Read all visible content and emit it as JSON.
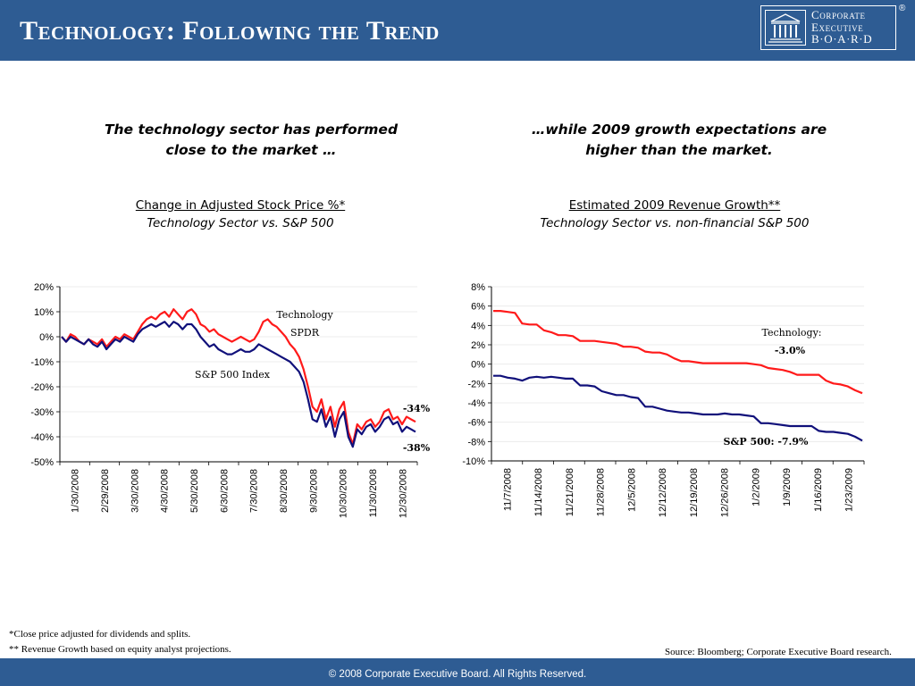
{
  "header": {
    "title": "Technology: Following the Trend",
    "logo_lines": [
      "Corporate",
      "Executive",
      "B·O·A·R·D"
    ],
    "registered": "®"
  },
  "left": {
    "headline_l1": "The technology sector has performed",
    "headline_l2": "close to the market …",
    "subtitle": "Change in Adjusted Stock Price %*",
    "subtitle2": "Technology Sector vs. S&P 500"
  },
  "right": {
    "headline_l1": "…while 2009 growth expectations are",
    "headline_l2": "higher than the market.",
    "subtitle": "Estimated 2009 Revenue Growth**",
    "subtitle2": "Technology Sector  vs. non-financial S&P 500"
  },
  "footnotes": {
    "note1": "*Close price adjusted for dividends and splits.",
    "note2": "** Revenue Growth based on equity analyst projections.",
    "source": "Source: Bloomberg; Corporate Executive Board research."
  },
  "footer": {
    "copyright": "© 2008 Corporate Executive Board. All Rights Reserved."
  },
  "colors": {
    "brand": "#2e5c93",
    "technology": "#ff1a1a",
    "sp500": "#10107a"
  },
  "chart_data": [
    {
      "type": "line",
      "ylim": [
        -0.5,
        0.2
      ],
      "ytick_labels": [
        "20%",
        "10%",
        "0%",
        "-10%",
        "-20%",
        "-30%",
        "-40%",
        "-50%"
      ],
      "yticks": [
        0.2,
        0.1,
        0.0,
        -0.1,
        -0.2,
        -0.3,
        -0.4,
        -0.5
      ],
      "xtick_labels": [
        "1/30/2008",
        "2/29/2008",
        "3/30/2008",
        "4/30/2008",
        "5/30/2008",
        "6/30/2008",
        "7/30/2008",
        "8/30/2008",
        "9/30/2008",
        "10/30/2008",
        "11/30/2008",
        "12/30/2008"
      ],
      "annotations": {
        "technology_label_l1": "Technology",
        "technology_label_l2": "SPDR",
        "sp500_label": "S&P 500 Index",
        "tech_end": "-34%",
        "sp_end": "-38%"
      },
      "series": [
        {
          "name": "Technology SPDR",
          "color": "#ff1a1a",
          "values": [
            0.0,
            -0.02,
            0.01,
            0.0,
            -0.02,
            -0.03,
            -0.01,
            -0.02,
            -0.03,
            -0.01,
            -0.04,
            -0.02,
            0.0,
            -0.01,
            0.01,
            0.0,
            -0.01,
            0.02,
            0.05,
            0.07,
            0.08,
            0.07,
            0.09,
            0.1,
            0.08,
            0.11,
            0.09,
            0.07,
            0.1,
            0.11,
            0.09,
            0.05,
            0.04,
            0.02,
            0.03,
            0.01,
            0.0,
            -0.01,
            -0.02,
            -0.01,
            0.0,
            -0.01,
            -0.02,
            -0.01,
            0.02,
            0.06,
            0.07,
            0.05,
            0.04,
            0.02,
            0.0,
            -0.03,
            -0.05,
            -0.08,
            -0.13,
            -0.2,
            -0.28,
            -0.3,
            -0.25,
            -0.33,
            -0.28,
            -0.36,
            -0.29,
            -0.26,
            -0.38,
            -0.43,
            -0.35,
            -0.37,
            -0.34,
            -0.33,
            -0.36,
            -0.34,
            -0.3,
            -0.29,
            -0.33,
            -0.32,
            -0.35,
            -0.32,
            -0.33,
            -0.34
          ]
        },
        {
          "name": "S&P 500 Index",
          "color": "#10107a",
          "values": [
            0.0,
            -0.02,
            0.0,
            -0.01,
            -0.02,
            -0.03,
            -0.01,
            -0.03,
            -0.04,
            -0.02,
            -0.05,
            -0.03,
            -0.01,
            -0.02,
            0.0,
            -0.01,
            -0.02,
            0.01,
            0.03,
            0.04,
            0.05,
            0.04,
            0.05,
            0.06,
            0.04,
            0.06,
            0.05,
            0.03,
            0.05,
            0.05,
            0.03,
            0.0,
            -0.02,
            -0.04,
            -0.03,
            -0.05,
            -0.06,
            -0.07,
            -0.07,
            -0.06,
            -0.05,
            -0.06,
            -0.06,
            -0.05,
            -0.03,
            -0.04,
            -0.05,
            -0.06,
            -0.07,
            -0.08,
            -0.09,
            -0.1,
            -0.12,
            -0.14,
            -0.18,
            -0.25,
            -0.33,
            -0.34,
            -0.29,
            -0.36,
            -0.32,
            -0.4,
            -0.33,
            -0.3,
            -0.4,
            -0.44,
            -0.37,
            -0.39,
            -0.36,
            -0.35,
            -0.38,
            -0.36,
            -0.33,
            -0.32,
            -0.35,
            -0.34,
            -0.38,
            -0.36,
            -0.37,
            -0.38
          ]
        }
      ]
    },
    {
      "type": "line",
      "ylim": [
        -0.1,
        0.08
      ],
      "ytick_labels": [
        "8%",
        "6%",
        "4%",
        "2%",
        "0%",
        "-2%",
        "-4%",
        "-6%",
        "-8%",
        "-10%"
      ],
      "yticks": [
        0.08,
        0.06,
        0.04,
        0.02,
        0.0,
        -0.02,
        -0.04,
        -0.06,
        -0.08,
        -0.1
      ],
      "xtick_labels": [
        "11/7/2008",
        "11/14/2008",
        "11/21/2008",
        "11/28/2008",
        "12/5/2008",
        "12/12/2008",
        "12/19/2008",
        "12/26/2008",
        "1/2/2009",
        "1/9/2009",
        "1/16/2009",
        "1/23/2009"
      ],
      "annotations": {
        "technology_label_l1": "Technology:",
        "technology_label_l2": "-3.0%",
        "sp500_label": "S&P 500: -7.9%"
      },
      "series": [
        {
          "name": "Technology",
          "color": "#ff1a1a",
          "values": [
            0.055,
            0.055,
            0.054,
            0.053,
            0.042,
            0.041,
            0.041,
            0.035,
            0.033,
            0.03,
            0.03,
            0.029,
            0.024,
            0.024,
            0.024,
            0.023,
            0.022,
            0.021,
            0.018,
            0.018,
            0.017,
            0.013,
            0.012,
            0.012,
            0.01,
            0.006,
            0.003,
            0.003,
            0.002,
            0.001,
            0.001,
            0.001,
            0.001,
            0.001,
            0.001,
            0.001,
            0.0,
            -0.001,
            -0.004,
            -0.005,
            -0.006,
            -0.008,
            -0.011,
            -0.011,
            -0.011,
            -0.011,
            -0.017,
            -0.02,
            -0.021,
            -0.023,
            -0.027,
            -0.03
          ]
        },
        {
          "name": "S&P 500",
          "color": "#10107a",
          "values": [
            -0.012,
            -0.012,
            -0.014,
            -0.015,
            -0.017,
            -0.014,
            -0.013,
            -0.014,
            -0.013,
            -0.014,
            -0.015,
            -0.015,
            -0.022,
            -0.022,
            -0.023,
            -0.028,
            -0.03,
            -0.032,
            -0.032,
            -0.034,
            -0.035,
            -0.044,
            -0.044,
            -0.046,
            -0.048,
            -0.049,
            -0.05,
            -0.05,
            -0.051,
            -0.052,
            -0.052,
            -0.052,
            -0.051,
            -0.052,
            -0.052,
            -0.053,
            -0.054,
            -0.061,
            -0.061,
            -0.062,
            -0.063,
            -0.064,
            -0.064,
            -0.064,
            -0.064,
            -0.069,
            -0.07,
            -0.07,
            -0.071,
            -0.072,
            -0.075,
            -0.079
          ]
        }
      ]
    }
  ]
}
